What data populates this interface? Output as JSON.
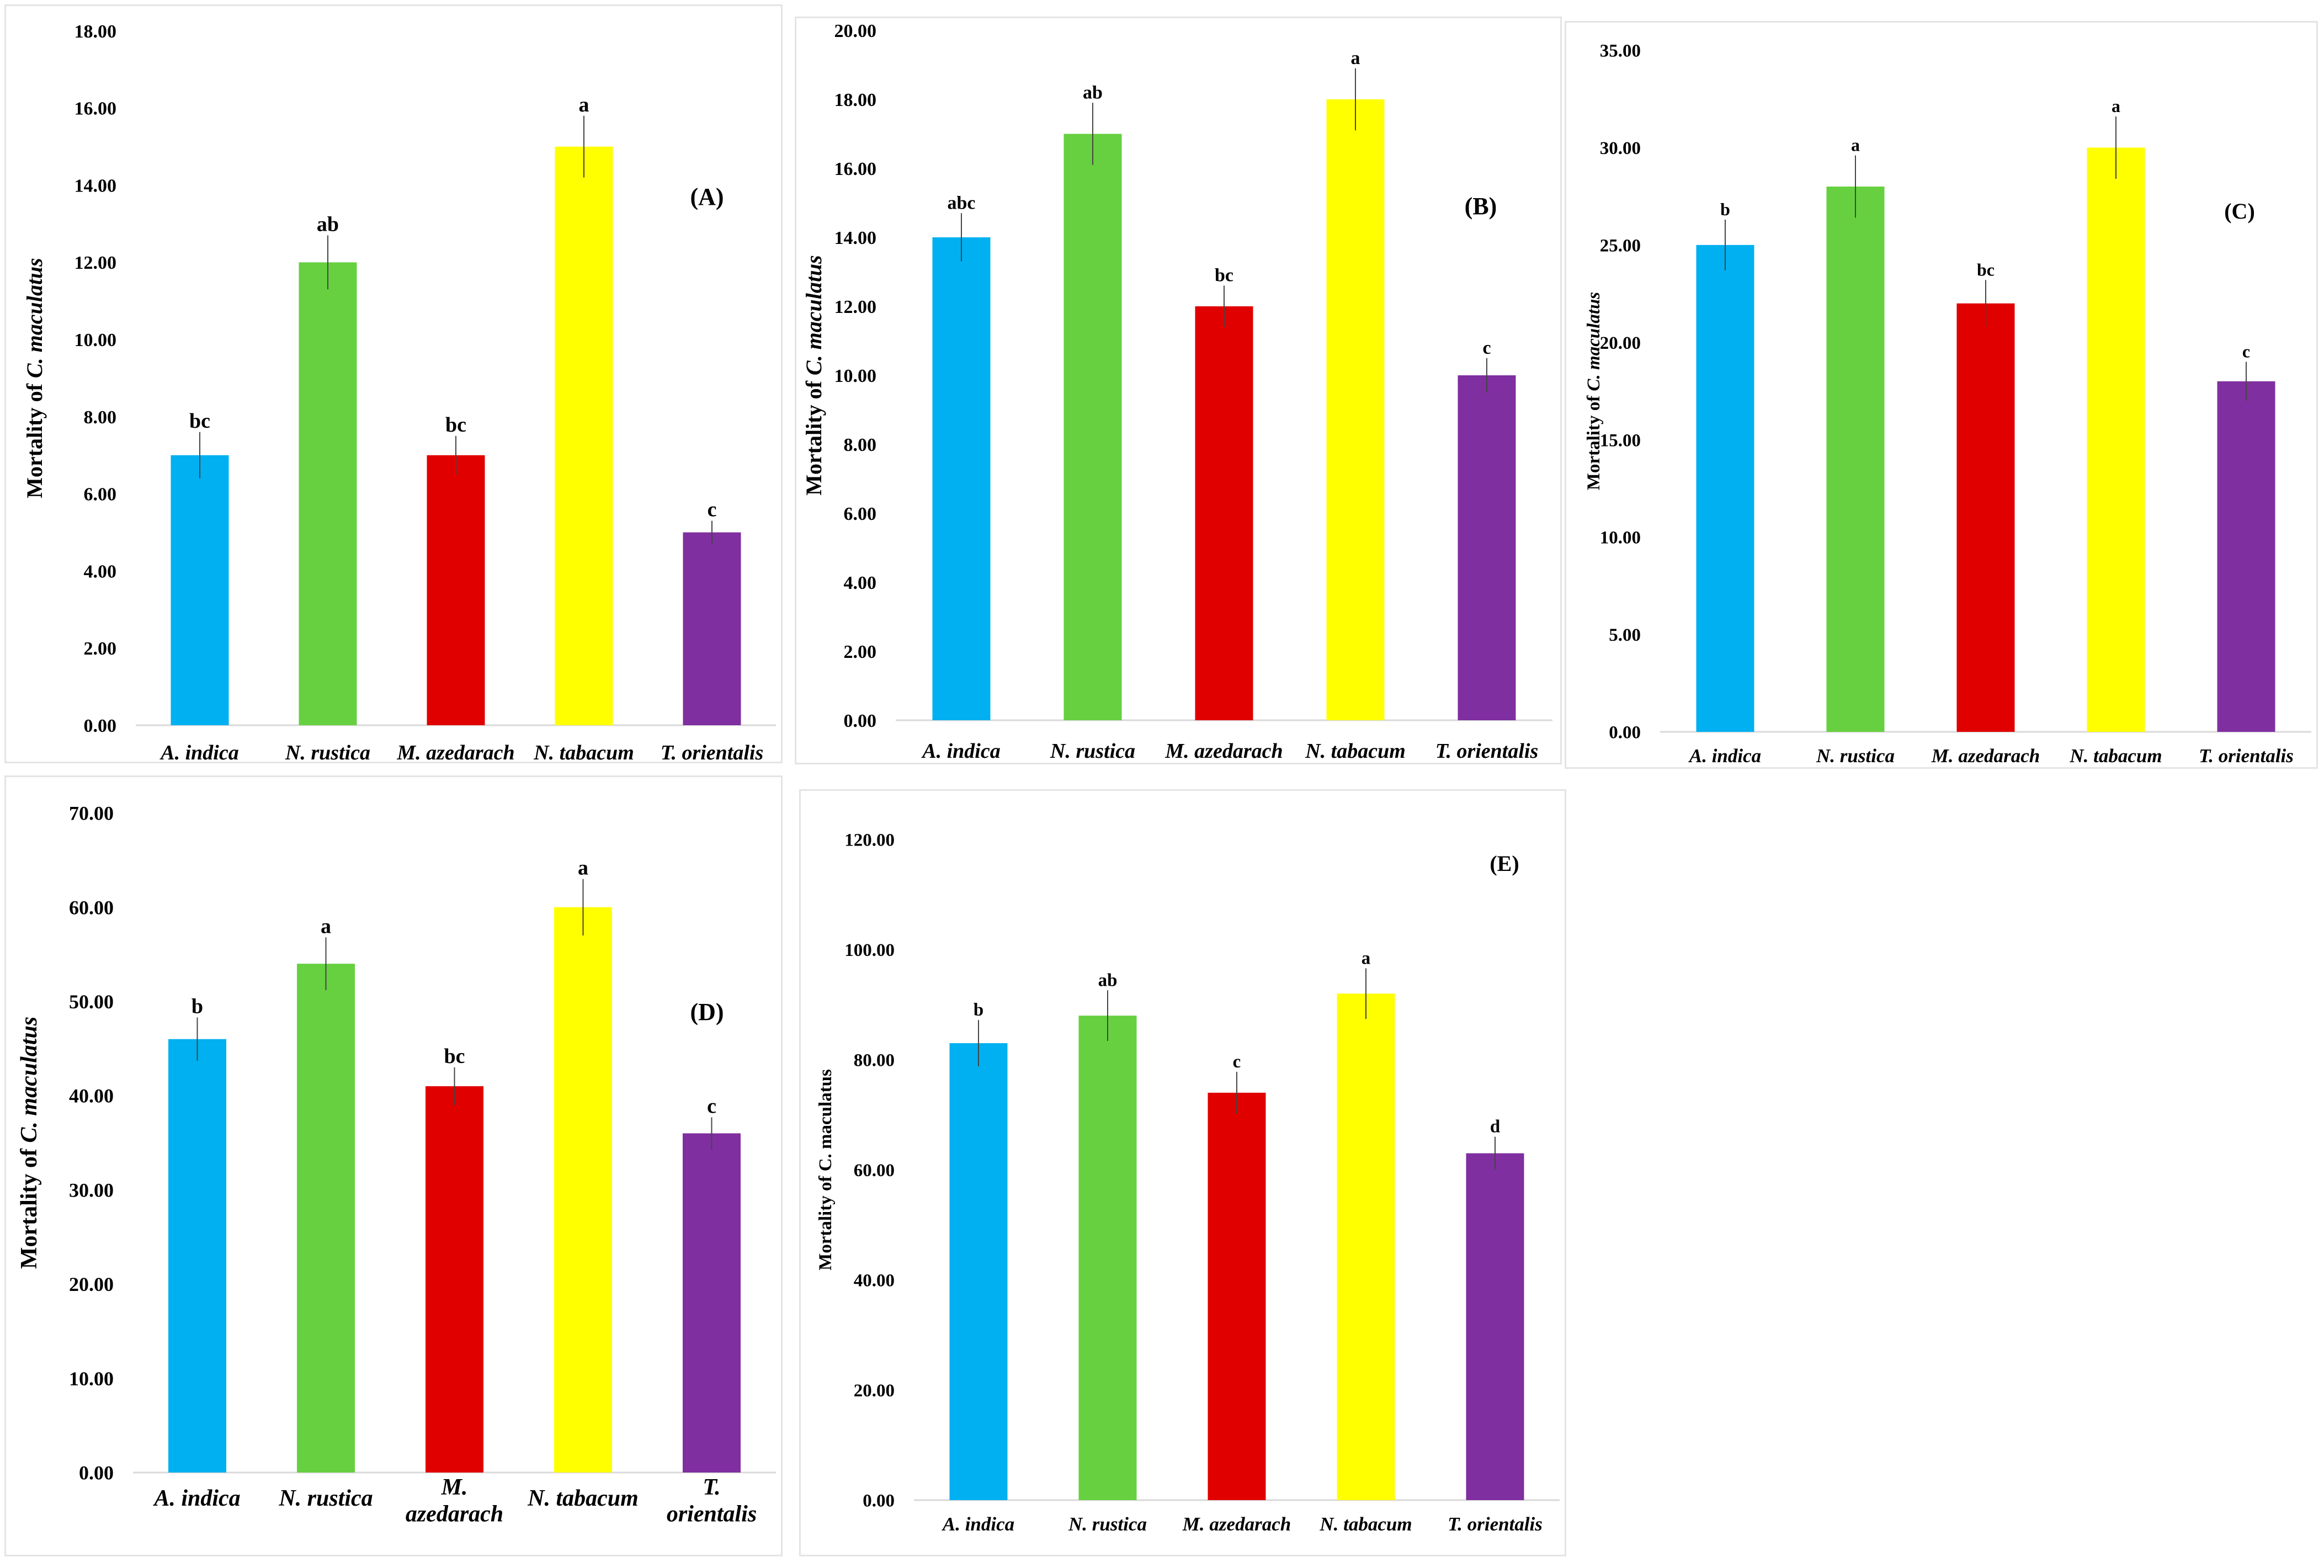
{
  "colors": {
    "a_indica": "#00b0f0",
    "n_rustica": "#66d040",
    "m_azedarach": "#e00000",
    "n_tabacum": "#ffff00",
    "t_orientalis": "#7f2fa0"
  },
  "chart_data": [
    {
      "type": "bar",
      "panel_label": "(A)",
      "ylabel_prefix": "Mortality of ",
      "ylabel_species": "C. maculatus",
      "ylabel_italic": true,
      "categories": [
        "A. indica",
        "N. rustica",
        "M. azedarach",
        "N. tabacum",
        "T. orientalis"
      ],
      "values": [
        7,
        12,
        7,
        15,
        5
      ],
      "errors": [
        0.6,
        0.7,
        0.5,
        0.8,
        0.3
      ],
      "significance": [
        "bc",
        "ab",
        "bc",
        "a",
        "c"
      ],
      "yticks": [
        "0.00",
        "2.00",
        "4.00",
        "6.00",
        "8.00",
        "10.00",
        "12.00",
        "14.00",
        "16.00",
        "18.00"
      ],
      "ylim": [
        0,
        18
      ]
    },
    {
      "type": "bar",
      "panel_label": "(B)",
      "ylabel_prefix": "Mortality of ",
      "ylabel_species": "C. maculatus",
      "ylabel_italic": true,
      "categories": [
        "A. indica",
        "N. rustica",
        "M. azedarach",
        "N. tabacum",
        "T. orientalis"
      ],
      "values": [
        14,
        17,
        12,
        18,
        10
      ],
      "errors": [
        0.7,
        0.9,
        0.6,
        0.9,
        0.5
      ],
      "significance": [
        "abc",
        "ab",
        "bc",
        "a",
        "c"
      ],
      "yticks": [
        "0.00",
        "2.00",
        "4.00",
        "6.00",
        "8.00",
        "10.00",
        "12.00",
        "14.00",
        "16.00",
        "18.00",
        "20.00"
      ],
      "ylim": [
        0,
        20
      ]
    },
    {
      "type": "bar",
      "panel_label": "(C)",
      "ylabel_prefix": "Mortality of ",
      "ylabel_species": "C. maculatus",
      "ylabel_italic": true,
      "categories": [
        "A. indica",
        "N. rustica",
        "M. azedarach",
        "N. tabacum",
        "T. orientalis"
      ],
      "values": [
        25,
        28,
        22,
        30,
        18
      ],
      "errors": [
        1.3,
        1.6,
        1.2,
        1.6,
        1.0
      ],
      "significance": [
        "b",
        "a",
        "bc",
        "a",
        "c"
      ],
      "yticks": [
        "0.00",
        "5.00",
        "10.00",
        "15.00",
        "20.00",
        "25.00",
        "30.00",
        "35.00"
      ],
      "ylim": [
        0,
        35
      ]
    },
    {
      "type": "bar",
      "panel_label": "(D)",
      "ylabel_prefix": "Mortality of ",
      "ylabel_species": "C. maculatus",
      "ylabel_italic": true,
      "categories": [
        "A. indica",
        "N. rustica",
        "M. azedarach",
        "N. tabacum",
        "T. orientalis"
      ],
      "values": [
        46,
        54,
        41,
        60,
        36
      ],
      "errors": [
        2.3,
        2.8,
        2.0,
        3.0,
        1.7
      ],
      "significance": [
        "b",
        "a",
        "bc",
        "a",
        "c"
      ],
      "yticks": [
        "0.00",
        "10.00",
        "20.00",
        "30.00",
        "40.00",
        "50.00",
        "60.00",
        "70.00"
      ],
      "ylim": [
        0,
        70
      ]
    },
    {
      "type": "bar",
      "panel_label": "(E)",
      "ylabel_prefix": "Mortality of ",
      "ylabel_species": "C. maculatus",
      "ylabel_italic": false,
      "categories": [
        "A. indica",
        "N. rustica",
        "M. azedarach",
        "N. tabacum",
        "T. orientalis"
      ],
      "values": [
        83,
        88,
        74,
        92,
        63
      ],
      "errors": [
        4.2,
        4.6,
        3.8,
        4.6,
        3.0
      ],
      "significance": [
        "b",
        "ab",
        "c",
        "a",
        "d"
      ],
      "yticks": [
        "0.00",
        "20.00",
        "40.00",
        "60.00",
        "80.00",
        "100.00",
        "120.00"
      ],
      "ylim": [
        0,
        120
      ]
    }
  ]
}
